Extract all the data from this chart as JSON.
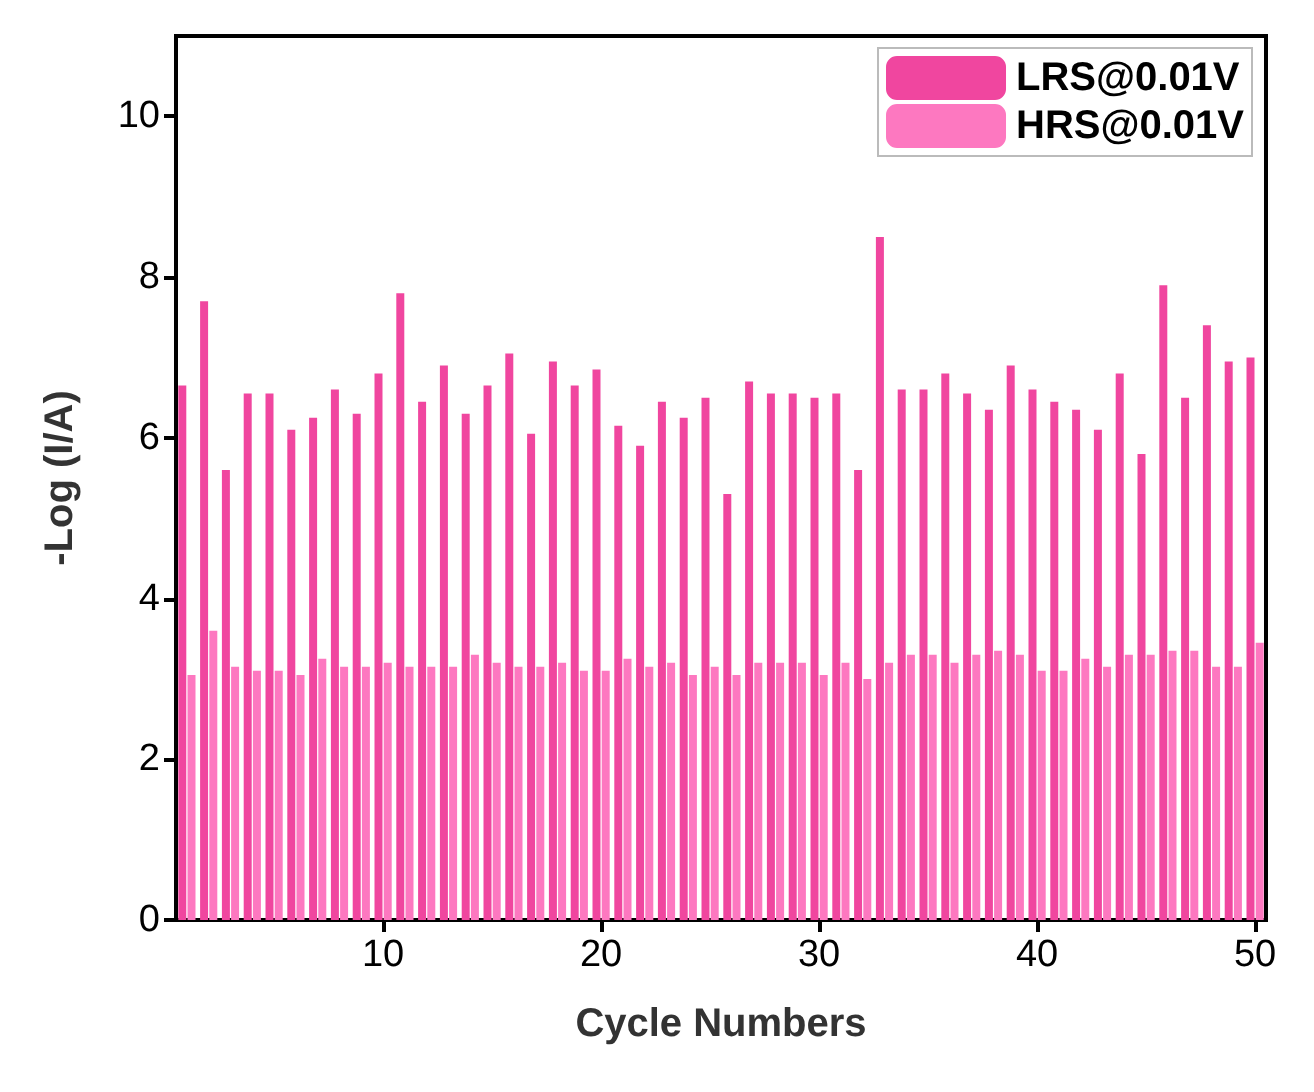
{
  "chart_data": {
    "type": "bar",
    "xlabel": "Cycle Numbers",
    "ylabel": "-Log (I/A)",
    "x": [
      1,
      2,
      3,
      4,
      5,
      6,
      7,
      8,
      9,
      10,
      11,
      12,
      13,
      14,
      15,
      16,
      17,
      18,
      19,
      20,
      21,
      22,
      23,
      24,
      25,
      26,
      27,
      28,
      29,
      30,
      31,
      32,
      33,
      34,
      35,
      36,
      37,
      38,
      39,
      40,
      41,
      42,
      43,
      44,
      45,
      46,
      47,
      48,
      49,
      50
    ],
    "series": [
      {
        "name": "LRS@0.01V",
        "color": "#f0469f",
        "values": [
          6.65,
          7.7,
          5.6,
          6.55,
          6.55,
          6.1,
          6.25,
          6.6,
          6.3,
          6.8,
          7.8,
          6.45,
          6.9,
          6.3,
          6.65,
          7.05,
          6.05,
          6.95,
          6.65,
          6.85,
          6.15,
          5.9,
          6.45,
          6.25,
          6.5,
          5.3,
          6.7,
          6.55,
          6.55,
          6.5,
          6.55,
          5.6,
          8.5,
          6.6,
          6.6,
          6.8,
          6.55,
          6.35,
          6.9,
          6.6,
          6.45,
          6.35,
          6.1,
          6.8,
          5.8,
          7.9,
          6.5,
          7.4,
          6.95,
          7.0
        ]
      },
      {
        "name": "HRS@0.01V",
        "color": "#fd78c0",
        "values": [
          3.05,
          3.6,
          3.15,
          3.1,
          3.1,
          3.05,
          3.25,
          3.15,
          3.15,
          3.2,
          3.15,
          3.15,
          3.15,
          3.3,
          3.2,
          3.15,
          3.15,
          3.2,
          3.1,
          3.1,
          3.25,
          3.15,
          3.2,
          3.05,
          3.15,
          3.05,
          3.2,
          3.2,
          3.2,
          3.05,
          3.2,
          3.0,
          3.2,
          3.3,
          3.3,
          3.2,
          3.3,
          3.35,
          3.3,
          3.1,
          3.1,
          3.25,
          3.15,
          3.3,
          3.3,
          3.35,
          3.35,
          3.15,
          3.15,
          3.45
        ]
      }
    ],
    "xlim": [
      0.5,
      50.5
    ],
    "xticks": [
      10,
      20,
      30,
      40,
      50
    ],
    "ylim": [
      0,
      11
    ],
    "yticks": [
      0,
      2,
      4,
      6,
      8,
      10
    ],
    "grid": false,
    "legend": "top right"
  }
}
